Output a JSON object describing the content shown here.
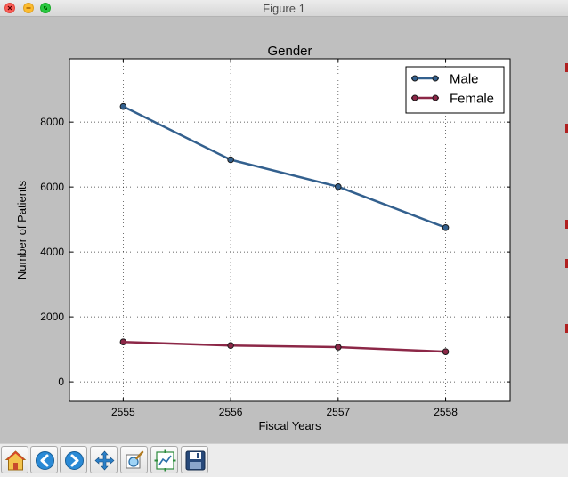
{
  "window": {
    "title": "Figure 1"
  },
  "chart_data": {
    "type": "line",
    "title": "Gender",
    "xlabel": "Fiscal Years",
    "ylabel": "Number of Patients",
    "x": [
      2555,
      2556,
      2557,
      2558
    ],
    "xlim": [
      2554.5,
      2558.6
    ],
    "ylim": [
      -600,
      9950
    ],
    "xticks": [
      "2555",
      "2556",
      "2557",
      "2558"
    ],
    "yticks": [
      "0",
      "2000",
      "4000",
      "6000",
      "8000"
    ],
    "grid": true,
    "legend_position": "top-right",
    "series": [
      {
        "name": "Male",
        "color": "#33608e",
        "values": [
          8480,
          6840,
          6010,
          4750
        ]
      },
      {
        "name": "Female",
        "color": "#8c2747",
        "values": [
          1230,
          1120,
          1070,
          930
        ]
      }
    ]
  },
  "toolbar": {
    "buttons": [
      {
        "name": "home-button",
        "icon": "home-icon"
      },
      {
        "name": "back-button",
        "icon": "back-arrow-icon"
      },
      {
        "name": "forward-button",
        "icon": "forward-arrow-icon"
      },
      {
        "name": "pan-button",
        "icon": "move-arrows-icon"
      },
      {
        "name": "zoom-button",
        "icon": "zoom-rect-icon"
      },
      {
        "name": "configure-subplots-button",
        "icon": "subplots-icon"
      },
      {
        "name": "save-button",
        "icon": "floppy-disk-icon"
      }
    ]
  }
}
